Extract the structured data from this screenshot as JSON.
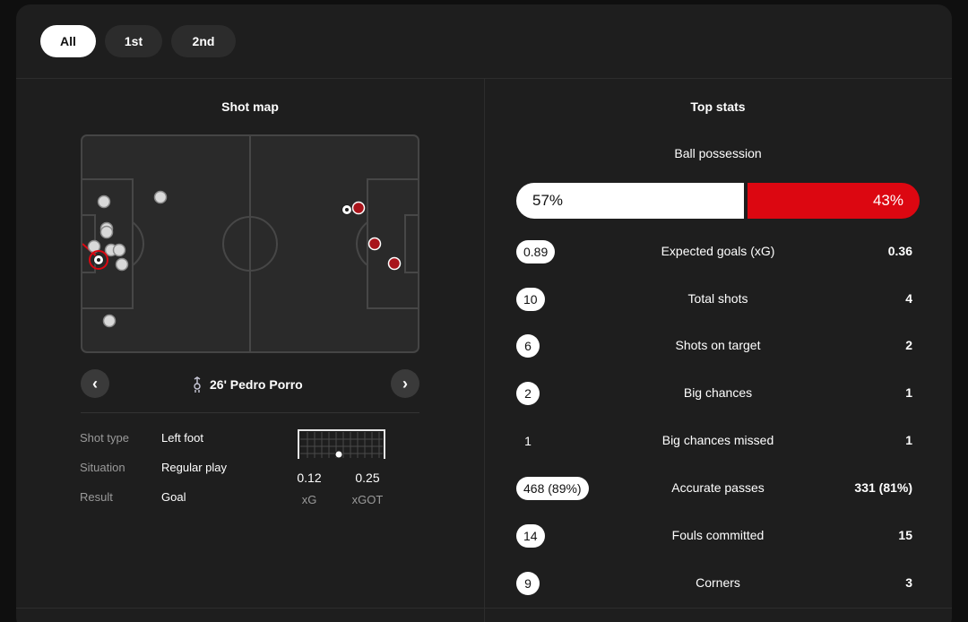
{
  "periods": [
    {
      "label": "All",
      "active": true
    },
    {
      "label": "1st",
      "active": false
    },
    {
      "label": "2nd",
      "active": false
    }
  ],
  "shot_map": {
    "title": "Shot map",
    "selected_shot": {
      "minute_player": "26' Pedro Porro",
      "team_icon": "rooster-crest-icon",
      "details": [
        {
          "label": "Shot type",
          "value": "Left foot"
        },
        {
          "label": "Situation",
          "value": "Regular play"
        },
        {
          "label": "Result",
          "value": "Goal"
        }
      ],
      "xg": "0.12",
      "xg_label": "xG",
      "xgot": "0.25",
      "xgot_label": "xGOT"
    },
    "home_shot_color": "#d9d9d9",
    "away_shot_color": "#a8141b"
  },
  "top_stats": {
    "title": "Top stats",
    "possession": {
      "label": "Ball possession",
      "home": "57%",
      "away": "43%",
      "home_pct": 57,
      "away_pct": 43
    },
    "rows": [
      {
        "label": "Expected goals (xG)",
        "home": "0.89",
        "away": "0.36",
        "home_pill": true
      },
      {
        "label": "Total shots",
        "home": "10",
        "away": "4",
        "home_pill": true
      },
      {
        "label": "Shots on target",
        "home": "6",
        "away": "2",
        "home_pill": true
      },
      {
        "label": "Big chances",
        "home": "2",
        "away": "1",
        "home_pill": true
      },
      {
        "label": "Big chances missed",
        "home": "1",
        "away": "1",
        "home_pill": false
      },
      {
        "label": "Accurate passes",
        "home": "468 (89%)",
        "away": "331 (81%)",
        "home_pill": true
      },
      {
        "label": "Fouls committed",
        "home": "14",
        "away": "15",
        "home_pill": true
      },
      {
        "label": "Corners",
        "home": "9",
        "away": "3",
        "home_pill": true
      }
    ],
    "away_color": "#dc0711"
  }
}
